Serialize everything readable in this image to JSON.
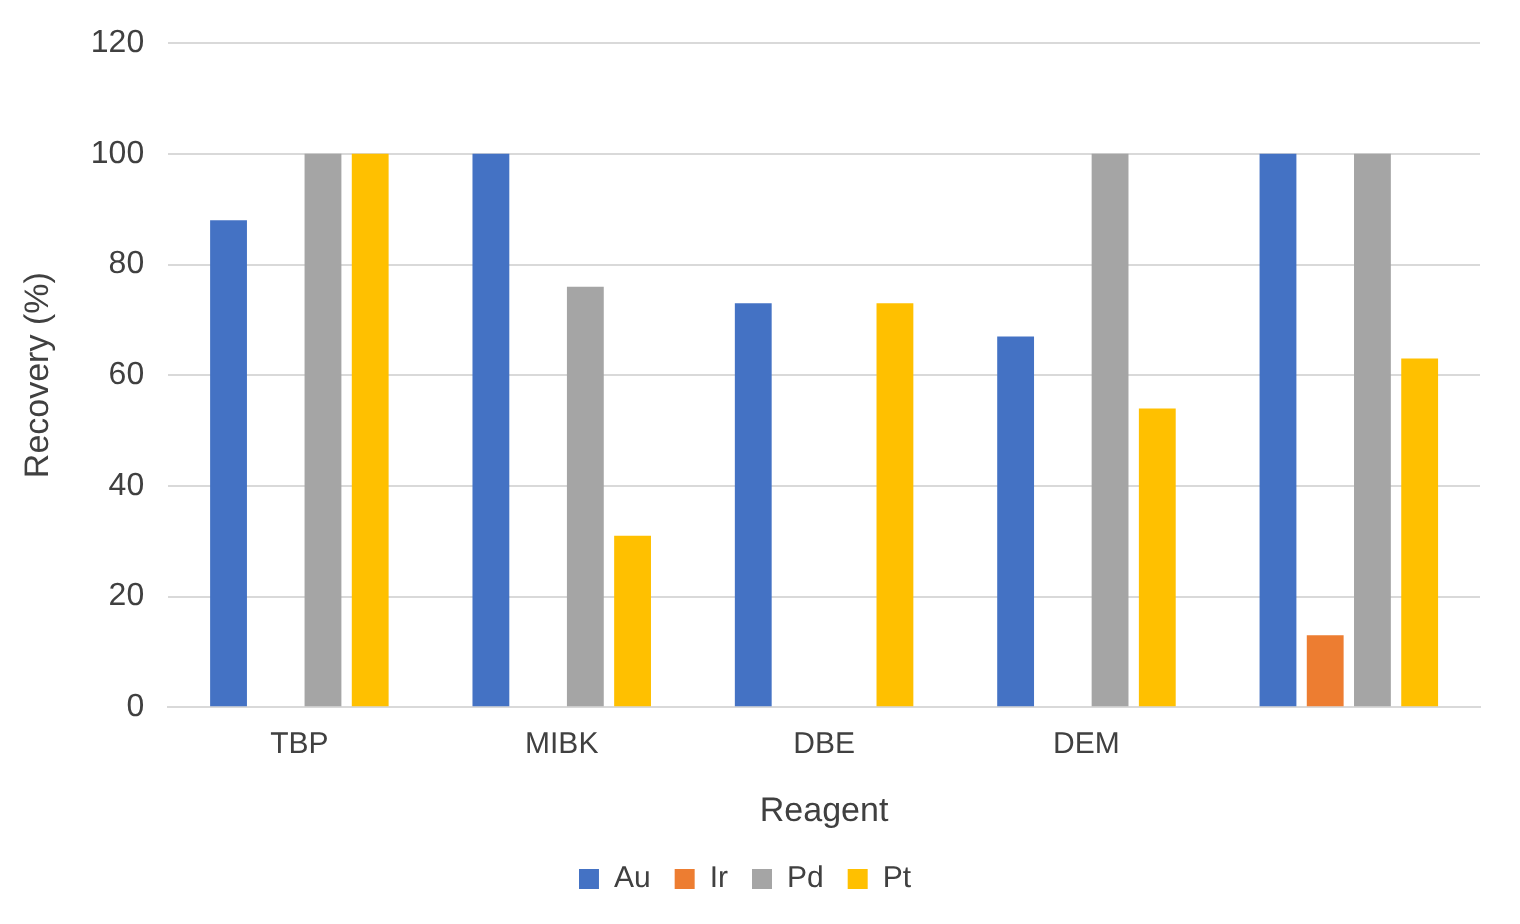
{
  "chart_data": {
    "type": "bar",
    "xlabel": "Reagent",
    "ylabel": "Recovery (%)",
    "categories": [
      "TBP",
      "MIBK",
      "DBE",
      "DEM",
      null
    ],
    "series": [
      {
        "name": "Au",
        "color": "#4472c4",
        "values": [
          88,
          100,
          73,
          67,
          100
        ]
      },
      {
        "name": "Ir",
        "color": "#ed7d31",
        "values": [
          null,
          null,
          null,
          null,
          13
        ]
      },
      {
        "name": "Pd",
        "color": "#a5a5a5",
        "values": [
          100,
          76,
          null,
          100,
          100
        ]
      },
      {
        "name": "Pt",
        "color": "#ffc000",
        "values": [
          100,
          31,
          73,
          54,
          63
        ]
      }
    ],
    "ylim": [
      0,
      120
    ],
    "yticks": [
      0,
      20,
      40,
      60,
      80,
      100,
      120
    ],
    "grid": "y",
    "legend": "bottom"
  }
}
